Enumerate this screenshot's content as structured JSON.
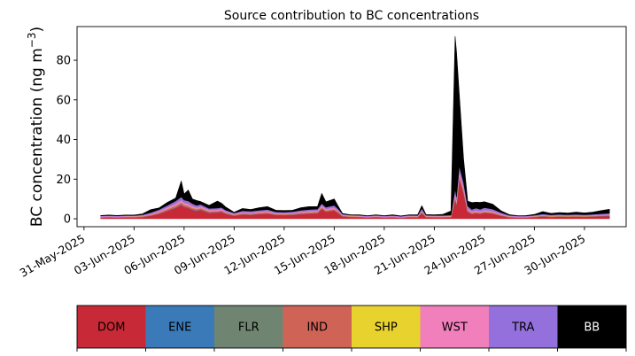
{
  "chart_data": {
    "type": "area",
    "stacked": true,
    "title": "Source contribution to BC concentrations",
    "ylabel_main": "BC concentration (ng m",
    "ylabel_sup": "−3",
    "ylabel_close": ")",
    "xlabel": "",
    "x_range": [
      "2025-05-30T14:00",
      "2025-07-02T12:00"
    ],
    "ylim": [
      -4,
      97
    ],
    "y_ticks": [
      0,
      20,
      40,
      60,
      80
    ],
    "y_tick_labels": [
      "0",
      "20",
      "40",
      "60",
      "80"
    ],
    "x_ticks": [
      "2025-05-31",
      "2025-06-03",
      "2025-06-06",
      "2025-06-09",
      "2025-06-12",
      "2025-06-15",
      "2025-06-18",
      "2025-06-21",
      "2025-06-24",
      "2025-06-27",
      "2025-06-30"
    ],
    "x_tick_labels": [
      "31-May-2025",
      "03-Jun-2025",
      "06-Jun-2025",
      "09-Jun-2025",
      "12-Jun-2025",
      "15-Jun-2025",
      "18-Jun-2025",
      "21-Jun-2025",
      "24-Jun-2025",
      "27-Jun-2025",
      "30-Jun-2025"
    ],
    "x": [
      "2025-06-01T00:00",
      "2025-06-01T12:00",
      "2025-06-02T00:00",
      "2025-06-02T12:00",
      "2025-06-03T00:00",
      "2025-06-03T12:00",
      "2025-06-04T00:00",
      "2025-06-04T12:00",
      "2025-06-05T00:00",
      "2025-06-05T12:00",
      "2025-06-05T20:00",
      "2025-06-06T00:00",
      "2025-06-06T06:00",
      "2025-06-06T12:00",
      "2025-06-06T18:00",
      "2025-06-07T00:00",
      "2025-06-07T12:00",
      "2025-06-08T00:00",
      "2025-06-08T06:00",
      "2025-06-08T12:00",
      "2025-06-09T00:00",
      "2025-06-09T12:00",
      "2025-06-10T00:00",
      "2025-06-10T12:00",
      "2025-06-11T00:00",
      "2025-06-11T12:00",
      "2025-06-12T00:00",
      "2025-06-12T12:00",
      "2025-06-13T00:00",
      "2025-06-13T12:00",
      "2025-06-14T00:00",
      "2025-06-14T06:00",
      "2025-06-14T12:00",
      "2025-06-15T00:00",
      "2025-06-15T06:00",
      "2025-06-15T12:00",
      "2025-06-16T00:00",
      "2025-06-16T12:00",
      "2025-06-17T00:00",
      "2025-06-17T12:00",
      "2025-06-18T00:00",
      "2025-06-18T12:00",
      "2025-06-19T00:00",
      "2025-06-19T12:00",
      "2025-06-20T00:00",
      "2025-06-20T06:00",
      "2025-06-20T12:00",
      "2025-06-21T00:00",
      "2025-06-21T12:00",
      "2025-06-22T00:00",
      "2025-06-22T06:00",
      "2025-06-22T08:00",
      "2025-06-22T12:00",
      "2025-06-22T18:00",
      "2025-06-23T00:00",
      "2025-06-23T06:00",
      "2025-06-23T12:00",
      "2025-06-23T18:00",
      "2025-06-24T00:00",
      "2025-06-24T12:00",
      "2025-06-25T00:00",
      "2025-06-25T12:00",
      "2025-06-26T00:00",
      "2025-06-26T12:00",
      "2025-06-27T00:00",
      "2025-06-27T12:00",
      "2025-06-28T00:00",
      "2025-06-28T12:00",
      "2025-06-29T00:00",
      "2025-06-29T12:00",
      "2025-06-30T00:00",
      "2025-06-30T12:00",
      "2025-07-01T00:00",
      "2025-07-01T12:00"
    ],
    "series": [
      {
        "name": "DOM",
        "color": "#c72a36",
        "values": [
          0.6,
          0.7,
          0.6,
          0.7,
          0.7,
          0.9,
          1.5,
          2.5,
          4.0,
          5.5,
          7.0,
          6.0,
          5.5,
          4.5,
          4.0,
          4.5,
          3.0,
          3.2,
          3.5,
          2.5,
          1.5,
          2.2,
          2.0,
          2.4,
          2.6,
          1.9,
          1.8,
          2.0,
          2.4,
          2.6,
          2.8,
          5.0,
          3.5,
          4.2,
          2.8,
          1.2,
          0.9,
          0.8,
          0.6,
          0.8,
          0.6,
          0.7,
          0.5,
          0.8,
          0.7,
          3.0,
          0.8,
          0.7,
          0.7,
          0.8,
          10.0,
          7.0,
          20.0,
          13.0,
          3.5,
          2.4,
          2.8,
          2.5,
          3.0,
          2.6,
          1.5,
          0.7,
          0.6,
          0.6,
          0.8,
          1.2,
          0.9,
          1.1,
          1.0,
          1.1,
          1.0,
          1.1,
          1.3,
          1.4
        ]
      },
      {
        "name": "ENE",
        "color": "#3b7ab8",
        "values": [
          0.05,
          0.05,
          0.05,
          0.05,
          0.05,
          0.05,
          0.08,
          0.1,
          0.15,
          0.2,
          0.25,
          0.2,
          0.2,
          0.18,
          0.15,
          0.15,
          0.12,
          0.12,
          0.12,
          0.1,
          0.08,
          0.1,
          0.1,
          0.1,
          0.1,
          0.08,
          0.08,
          0.08,
          0.1,
          0.1,
          0.1,
          0.15,
          0.12,
          0.12,
          0.1,
          0.06,
          0.05,
          0.05,
          0.04,
          0.05,
          0.04,
          0.05,
          0.04,
          0.05,
          0.05,
          0.1,
          0.05,
          0.05,
          0.05,
          0.05,
          0.3,
          0.25,
          0.4,
          0.35,
          0.15,
          0.1,
          0.12,
          0.1,
          0.12,
          0.1,
          0.07,
          0.05,
          0.04,
          0.04,
          0.05,
          0.07,
          0.05,
          0.06,
          0.06,
          0.06,
          0.06,
          0.06,
          0.07,
          0.08
        ]
      },
      {
        "name": "FLR",
        "color": "#6f8571",
        "values": [
          0.03,
          0.03,
          0.03,
          0.03,
          0.03,
          0.03,
          0.05,
          0.06,
          0.08,
          0.1,
          0.12,
          0.1,
          0.1,
          0.09,
          0.08,
          0.08,
          0.06,
          0.06,
          0.06,
          0.05,
          0.04,
          0.05,
          0.05,
          0.05,
          0.05,
          0.04,
          0.04,
          0.04,
          0.05,
          0.05,
          0.05,
          0.08,
          0.06,
          0.06,
          0.05,
          0.03,
          0.03,
          0.03,
          0.02,
          0.03,
          0.02,
          0.03,
          0.02,
          0.03,
          0.03,
          0.05,
          0.03,
          0.03,
          0.03,
          0.03,
          0.15,
          0.12,
          0.2,
          0.18,
          0.08,
          0.05,
          0.06,
          0.05,
          0.06,
          0.05,
          0.04,
          0.03,
          0.02,
          0.02,
          0.03,
          0.04,
          0.03,
          0.03,
          0.03,
          0.03,
          0.03,
          0.03,
          0.04,
          0.04
        ]
      },
      {
        "name": "IND",
        "color": "#cf6356",
        "values": [
          0.25,
          0.3,
          0.25,
          0.3,
          0.3,
          0.35,
          0.45,
          0.55,
          0.7,
          0.8,
          0.9,
          0.8,
          0.8,
          0.75,
          0.7,
          0.7,
          0.6,
          0.6,
          0.6,
          0.5,
          0.4,
          0.5,
          0.5,
          0.5,
          0.55,
          0.45,
          0.45,
          0.45,
          0.5,
          0.55,
          0.55,
          0.7,
          0.6,
          0.65,
          0.55,
          0.35,
          0.3,
          0.3,
          0.25,
          0.3,
          0.25,
          0.3,
          0.25,
          0.3,
          0.3,
          0.5,
          0.3,
          0.3,
          0.3,
          0.3,
          1.0,
          0.9,
          1.5,
          1.2,
          0.6,
          0.5,
          0.55,
          0.5,
          0.55,
          0.5,
          0.4,
          0.3,
          0.25,
          0.25,
          0.3,
          0.35,
          0.3,
          0.32,
          0.3,
          0.32,
          0.3,
          0.32,
          0.35,
          0.38
        ]
      },
      {
        "name": "SHP",
        "color": "#e8d22d",
        "values": [
          0.05,
          0.05,
          0.05,
          0.05,
          0.05,
          0.05,
          0.06,
          0.07,
          0.08,
          0.1,
          0.1,
          0.1,
          0.1,
          0.09,
          0.08,
          0.08,
          0.07,
          0.07,
          0.07,
          0.06,
          0.05,
          0.06,
          0.06,
          0.06,
          0.06,
          0.05,
          0.05,
          0.05,
          0.06,
          0.06,
          0.06,
          0.08,
          0.07,
          0.07,
          0.06,
          0.04,
          0.04,
          0.04,
          0.03,
          0.04,
          0.03,
          0.04,
          0.03,
          0.04,
          0.04,
          0.06,
          0.04,
          0.04,
          0.04,
          0.04,
          0.12,
          0.1,
          0.15,
          0.12,
          0.07,
          0.06,
          0.06,
          0.06,
          0.06,
          0.06,
          0.05,
          0.04,
          0.03,
          0.03,
          0.04,
          0.04,
          0.04,
          0.04,
          0.04,
          0.04,
          0.04,
          0.04,
          0.04,
          0.05
        ]
      },
      {
        "name": "WST",
        "color": "#f07fbc",
        "values": [
          0.2,
          0.25,
          0.2,
          0.25,
          0.25,
          0.3,
          0.4,
          0.6,
          0.8,
          1.0,
          1.2,
          1.0,
          1.0,
          0.9,
          0.8,
          0.8,
          0.6,
          0.6,
          0.6,
          0.5,
          0.4,
          0.5,
          0.5,
          0.5,
          0.55,
          0.4,
          0.4,
          0.4,
          0.5,
          0.55,
          0.55,
          0.8,
          0.6,
          0.7,
          0.55,
          0.3,
          0.25,
          0.25,
          0.2,
          0.25,
          0.2,
          0.25,
          0.2,
          0.25,
          0.25,
          0.5,
          0.25,
          0.25,
          0.25,
          0.3,
          1.5,
          1.2,
          2.0,
          1.6,
          0.8,
          0.6,
          0.7,
          0.6,
          0.7,
          0.6,
          0.4,
          0.25,
          0.2,
          0.2,
          0.25,
          0.3,
          0.25,
          0.28,
          0.26,
          0.28,
          0.26,
          0.28,
          0.3,
          0.35
        ]
      },
      {
        "name": "TRA",
        "color": "#9370db",
        "values": [
          0.3,
          0.3,
          0.3,
          0.3,
          0.3,
          0.4,
          0.6,
          0.8,
          1.0,
          1.3,
          1.5,
          1.3,
          1.3,
          1.2,
          1.0,
          1.0,
          0.8,
          0.8,
          0.8,
          0.7,
          0.5,
          0.7,
          0.6,
          0.7,
          0.75,
          0.6,
          0.55,
          0.6,
          0.7,
          0.75,
          0.8,
          1.0,
          0.9,
          1.0,
          0.8,
          0.4,
          0.35,
          0.35,
          0.3,
          0.35,
          0.3,
          0.35,
          0.3,
          0.35,
          0.35,
          1.0,
          0.35,
          0.35,
          0.35,
          0.4,
          2.0,
          1.5,
          2.5,
          2.0,
          1.2,
          1.0,
          1.1,
          1.0,
          1.1,
          1.0,
          0.7,
          0.4,
          0.3,
          0.3,
          0.35,
          0.45,
          0.4,
          0.42,
          0.4,
          0.42,
          0.4,
          0.42,
          0.45,
          0.5
        ]
      },
      {
        "name": "BB",
        "color": "#000000",
        "values": [
          0.2,
          0.2,
          0.2,
          0.2,
          0.2,
          0.4,
          1.5,
          0.8,
          1.5,
          1.5,
          8.0,
          3.0,
          5.5,
          2.3,
          2.4,
          1.4,
          1.5,
          3.5,
          2.1,
          1.5,
          0.3,
          1.1,
          0.9,
          1.3,
          1.5,
          0.8,
          0.8,
          0.7,
          1.3,
          1.5,
          1.3,
          5.0,
          2.7,
          3.2,
          1.3,
          0.3,
          0.1,
          0.2,
          0.1,
          0.2,
          0.1,
          0.3,
          0.1,
          0.2,
          0.3,
          1.4,
          0.3,
          0.3,
          0.5,
          2.0,
          77.0,
          73.0,
          36.0,
          12.0,
          2.5,
          3.5,
          3.0,
          3.5,
          3.0,
          2.5,
          0.9,
          0.3,
          0.1,
          0.2,
          0.4,
          1.2,
          0.8,
          0.9,
          0.8,
          1.1,
          0.9,
          1.1,
          1.6,
          2.0
        ]
      }
    ],
    "legend": {
      "placement": "bottom",
      "entries": [
        "DOM",
        "ENE",
        "FLR",
        "IND",
        "SHP",
        "WST",
        "TRA",
        "BB"
      ]
    }
  }
}
